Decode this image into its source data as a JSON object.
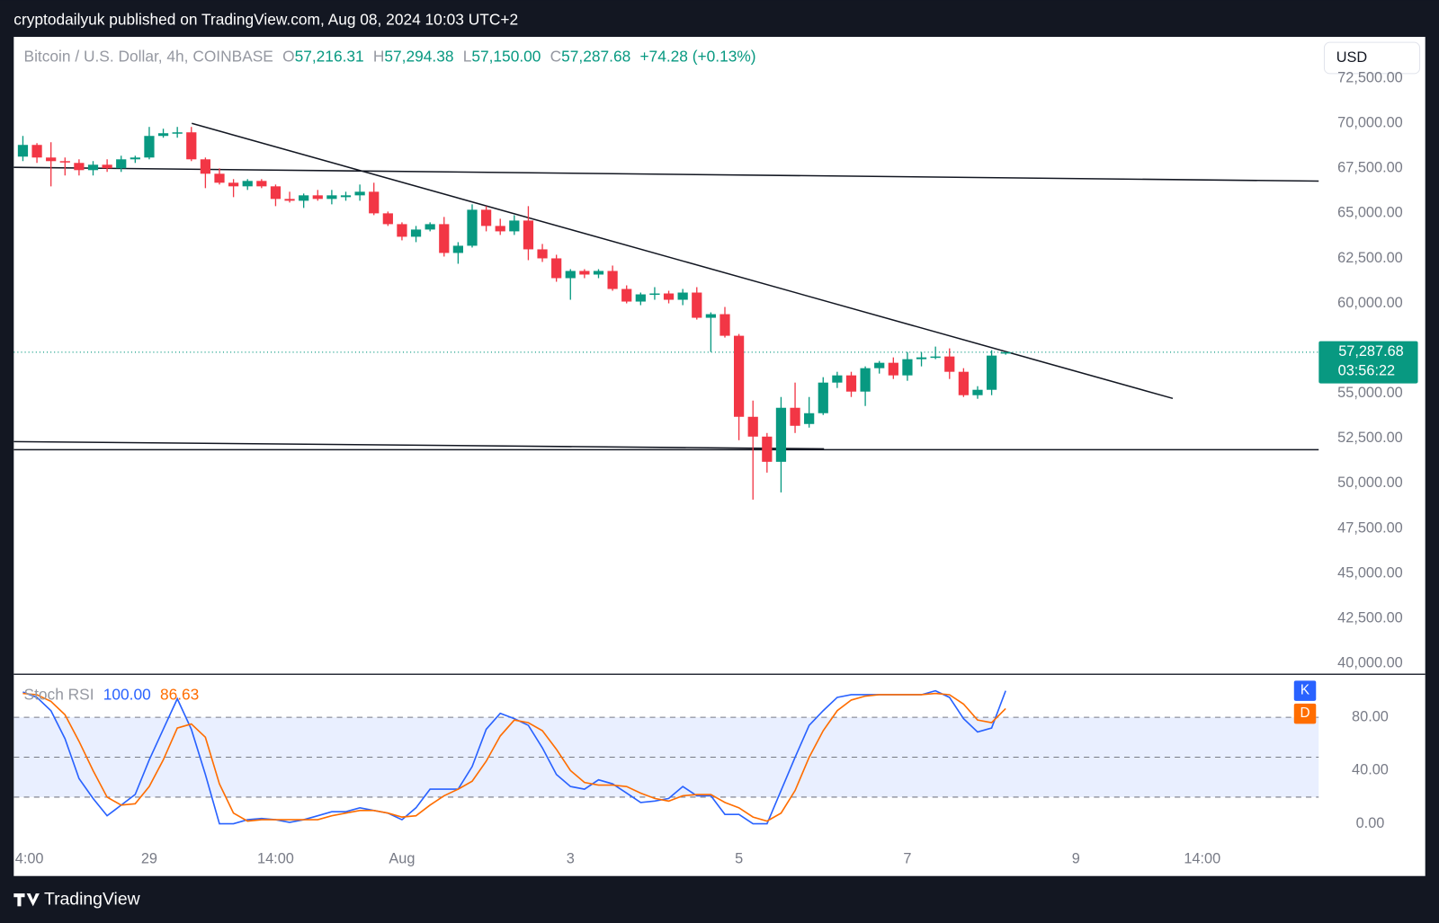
{
  "page": {
    "published": "cryptodailyuk published on TradingView.com, Aug 08, 2024 10:03 UTC+2",
    "brand": "TradingView",
    "currency": "USD"
  },
  "chart_data": [
    {
      "type": "candlestick",
      "legend": {
        "symbol": "Bitcoin / U.S. Dollar, 4h, COINBASE",
        "items": [
          {
            "key": "O",
            "value": "57,216.31"
          },
          {
            "key": "H",
            "value": "57,294.38"
          },
          {
            "key": "L",
            "value": "57,150.00"
          },
          {
            "key": "C",
            "value": "57,287.68"
          }
        ],
        "change": "+74.28 (+0.13%)"
      },
      "up_color": "#089981",
      "down_color": "#f23645",
      "categories": [
        null,
        null,
        null,
        null,
        null,
        null,
        null,
        null,
        null,
        null,
        null,
        null,
        null,
        null,
        null,
        null,
        null,
        null,
        null,
        null,
        null,
        null,
        null,
        null,
        null,
        null,
        null,
        null,
        null,
        null,
        null,
        null,
        null,
        null,
        null,
        null,
        null,
        null,
        null,
        null,
        null,
        null,
        null,
        null,
        null,
        null,
        null,
        null,
        null,
        null,
        null,
        null,
        null,
        null,
        null,
        null,
        null,
        null,
        null,
        null,
        null,
        null,
        null,
        null,
        null,
        null,
        null,
        null,
        null,
        null,
        null
      ],
      "open": [
        68150,
        68800,
        68100,
        67900,
        67800,
        67400,
        67700,
        67500,
        68000,
        68100,
        69300,
        69450,
        69500,
        68000,
        67200,
        66700,
        66500,
        66800,
        66500,
        65800,
        65700,
        66000,
        65800,
        65900,
        66000,
        66200,
        65000,
        64400,
        63700,
        64100,
        64400,
        62800,
        63200,
        65200,
        64300,
        64000,
        64600,
        63000,
        62500,
        61400,
        61800,
        61600,
        61800,
        60800,
        60100,
        60500,
        60550,
        60200,
        60600,
        59200,
        59400,
        58200,
        53700,
        52600,
        51200,
        54200,
        53300,
        53900,
        55600,
        56000,
        55100,
        56400,
        56700,
        56000,
        56900,
        57000,
        57050,
        56200,
        54900,
        55200,
        57216.31
      ],
      "high": [
        69300,
        68900,
        68950,
        68100,
        68000,
        67900,
        68000,
        68200,
        68200,
        69800,
        69700,
        69800,
        69800,
        68100,
        67500,
        66900,
        66900,
        66900,
        66600,
        66200,
        66100,
        66300,
        66300,
        66200,
        66600,
        66700,
        65100,
        64500,
        64300,
        64500,
        64800,
        63400,
        65500,
        65400,
        64700,
        64900,
        65400,
        63300,
        62700,
        61900,
        61900,
        61900,
        62100,
        61000,
        60600,
        60900,
        60700,
        60800,
        60900,
        59500,
        59800,
        58300,
        54600,
        52800,
        54800,
        55600,
        54800,
        55900,
        56200,
        56200,
        56500,
        56800,
        57000,
        57300,
        57300,
        57600,
        57500,
        56400,
        55400,
        57400,
        57294.38
      ],
      "low": [
        67900,
        67800,
        66500,
        67100,
        67100,
        67100,
        67300,
        67300,
        67800,
        68000,
        69200,
        69200,
        67900,
        66400,
        66600,
        65900,
        66300,
        66400,
        65400,
        65600,
        65300,
        65700,
        65500,
        65700,
        65700,
        64900,
        64300,
        63500,
        63400,
        64000,
        62600,
        62200,
        63100,
        64000,
        63800,
        63800,
        62400,
        62300,
        61200,
        60200,
        61400,
        61400,
        60700,
        60000,
        59900,
        60200,
        60000,
        59900,
        59100,
        57300,
        58100,
        52400,
        49100,
        50600,
        49500,
        52800,
        53100,
        53800,
        55300,
        54800,
        54300,
        56100,
        55800,
        55700,
        56500,
        56900,
        55800,
        54800,
        54700,
        54900,
        57150
      ],
      "close": [
        68800,
        68100,
        67900,
        67850,
        67400,
        67700,
        67500,
        68000,
        68100,
        69300,
        69450,
        69500,
        68000,
        67200,
        66700,
        66500,
        66800,
        66500,
        65800,
        65700,
        66000,
        65800,
        66000,
        66000,
        66200,
        65000,
        64400,
        63700,
        64100,
        64400,
        62800,
        63200,
        65200,
        64300,
        64000,
        64600,
        63000,
        62500,
        61400,
        61800,
        61600,
        61800,
        60800,
        60100,
        60500,
        60550,
        60200,
        60600,
        59200,
        59400,
        58200,
        53700,
        52600,
        51200,
        54200,
        53200,
        53900,
        55600,
        56000,
        55100,
        56400,
        56700,
        56000,
        56900,
        57000,
        57050,
        56200,
        54900,
        55200,
        57100,
        57287.68
      ],
      "xlim": [
        -0.65,
        92.3
      ],
      "xticks": [
        {
          "value": 0.46,
          "label": "4:00"
        },
        {
          "value": 9,
          "label": "29"
        },
        {
          "value": 18,
          "label": "14:00"
        },
        {
          "value": 27,
          "label": "Aug"
        },
        {
          "value": 39,
          "label": "3"
        },
        {
          "value": 51,
          "label": "5"
        },
        {
          "value": 63,
          "label": "7"
        },
        {
          "value": 75,
          "label": "9"
        },
        {
          "value": 84,
          "label": "14:00"
        }
      ],
      "ylim": [
        39400,
        74800
      ],
      "yticks": [
        {
          "value": 40000,
          "label": "40,000.00"
        },
        {
          "value": 42500,
          "label": "42,500.00"
        },
        {
          "value": 45000,
          "label": "45,000.00"
        },
        {
          "value": 47500,
          "label": "47,500.00"
        },
        {
          "value": 50000,
          "label": "50,000.00"
        },
        {
          "value": 52500,
          "label": "52,500.00"
        },
        {
          "value": 55000,
          "label": "55,000.00"
        },
        {
          "value": 57500,
          "label": "57,500.00"
        },
        {
          "value": 60000,
          "label": "60,000.00"
        },
        {
          "value": 62500,
          "label": "62,500.00"
        },
        {
          "value": 65000,
          "label": "65,000.00"
        },
        {
          "value": 67500,
          "label": "67,500.00"
        },
        {
          "value": 70000,
          "label": "70,000.00"
        },
        {
          "value": 72500,
          "label": "72,500.00"
        }
      ],
      "last_price": {
        "value": 57287.68,
        "label": "57,287.68",
        "countdown": "03:56:22"
      },
      "drawings": [
        {
          "x": [
            12.03,
            81.9
          ],
          "y": [
            70000,
            54720
          ]
        },
        {
          "x": [
            -0.65,
            92.3
          ],
          "y": [
            67555,
            66790
          ]
        },
        {
          "x": [
            -0.65,
            57.06
          ],
          "y": [
            52320,
            51920
          ]
        },
        {
          "x": [
            -0.65,
            92.3
          ],
          "y": [
            51870,
            51870
          ]
        }
      ]
    },
    {
      "type": "line",
      "title": "Stoch RSI",
      "series": [
        {
          "name": "K",
          "color": "#2962ff",
          "value_label": "100.00",
          "values": [
            99,
            95,
            85,
            64,
            34,
            19,
            6,
            14,
            22,
            48,
            71,
            94,
            71,
            37,
            0,
            0,
            3,
            4,
            3,
            1,
            3,
            6,
            9,
            9,
            12,
            10,
            8,
            3,
            12,
            26,
            26,
            26,
            43,
            71,
            83,
            79,
            74,
            57,
            37,
            28,
            26,
            33,
            30,
            23,
            16,
            17,
            19,
            28,
            21,
            21,
            7,
            7,
            0,
            0,
            25,
            50,
            74,
            85,
            95,
            97,
            97,
            97,
            97,
            97,
            97,
            100,
            95,
            79,
            69,
            72,
            100
          ]
        },
        {
          "name": "D",
          "color": "#ff6d00",
          "value_label": "86.63",
          "values": [
            98,
            97,
            92,
            82,
            62,
            40,
            20,
            14,
            15,
            28,
            48,
            72,
            75,
            65,
            30,
            8,
            2,
            3,
            3,
            3,
            3,
            3,
            6,
            8,
            10,
            10,
            8,
            5,
            6,
            14,
            21,
            26,
            32,
            47,
            66,
            78,
            76,
            70,
            56,
            40,
            31,
            29,
            29,
            28,
            23,
            19,
            17,
            21,
            22,
            22,
            16,
            12,
            5,
            2,
            8,
            25,
            50,
            70,
            85,
            93,
            96,
            97,
            97,
            97,
            97,
            98,
            97,
            90,
            78,
            76,
            86.63
          ]
        }
      ],
      "band": [
        20,
        80
      ],
      "midline": 50,
      "ylim": [
        -15.2,
        112.4
      ],
      "yticks": [
        {
          "value": 0,
          "label": "0.00"
        },
        {
          "value": 40,
          "label": "40.00"
        },
        {
          "value": 80,
          "label": "80.00"
        }
      ]
    }
  ]
}
